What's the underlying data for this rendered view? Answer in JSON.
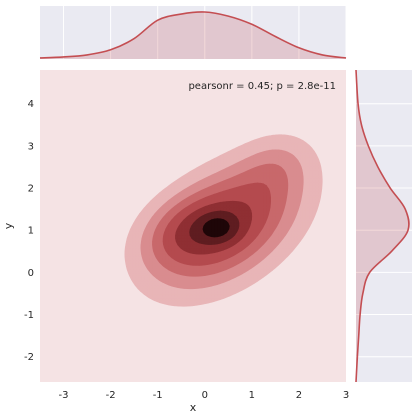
{
  "chart_data": {
    "type": "jointplot-kde",
    "xlabel": "x",
    "ylabel": "y",
    "annotation": "pearsonr = 0.45; p = 2.8e-11",
    "xlim": [
      -3.5,
      3.0
    ],
    "ylim": [
      -2.6,
      4.8
    ],
    "x_ticks": [
      -3,
      -2,
      -1,
      0,
      1,
      2,
      3
    ],
    "y_ticks": [
      -2,
      -1,
      0,
      1,
      2,
      3,
      4
    ],
    "marginal_x_ticks": [
      -3,
      -2,
      -1,
      0,
      1,
      2,
      3
    ],
    "marginal_y_ticks": [
      -2,
      -1,
      0,
      1,
      2,
      3,
      4
    ],
    "colors": {
      "background": "#f5e3e4",
      "margin_background": "#eaeaf2",
      "line": "#c44e52",
      "levels": [
        "#e8b5b7",
        "#d98c8f",
        "#c8686b",
        "#b44a4e",
        "#8f2f33",
        "#5f1d20",
        "#1e0608"
      ]
    },
    "kde_components": [
      {
        "cx": 0.45,
        "cy": 1.1,
        "sx": 1.0,
        "sy": 0.95,
        "rho": 0.45,
        "w": 1.0
      },
      {
        "cx": -0.45,
        "cy": 1.0,
        "sx": 0.6,
        "sy": 0.55,
        "rho": 0.3,
        "w": 0.38
      },
      {
        "cx": 1.5,
        "cy": 2.5,
        "sx": 0.5,
        "sy": 0.5,
        "rho": 0.2,
        "w": 0.2
      },
      {
        "cx": 0.3,
        "cy": 1.05,
        "sx": 0.3,
        "sy": 0.25,
        "rho": 0.0,
        "w": 0.35
      }
    ],
    "marginal_x_density": {
      "x": [
        -3.5,
        -3.0,
        -2.5,
        -2.0,
        -1.5,
        -1.0,
        -0.5,
        0.0,
        0.5,
        1.0,
        1.5,
        2.0,
        2.5,
        3.0
      ],
      "density": [
        0.01,
        0.02,
        0.04,
        0.09,
        0.2,
        0.38,
        0.44,
        0.46,
        0.42,
        0.34,
        0.22,
        0.11,
        0.04,
        0.01
      ]
    },
    "marginal_y_density": {
      "y": [
        -2.6,
        -2.0,
        -1.5,
        -1.0,
        -0.5,
        0.0,
        0.5,
        1.0,
        1.5,
        2.0,
        2.5,
        3.0,
        3.5,
        4.0,
        4.8
      ],
      "density": [
        0.0,
        0.01,
        0.02,
        0.03,
        0.05,
        0.1,
        0.26,
        0.38,
        0.36,
        0.25,
        0.16,
        0.09,
        0.04,
        0.015,
        0.0
      ]
    }
  }
}
